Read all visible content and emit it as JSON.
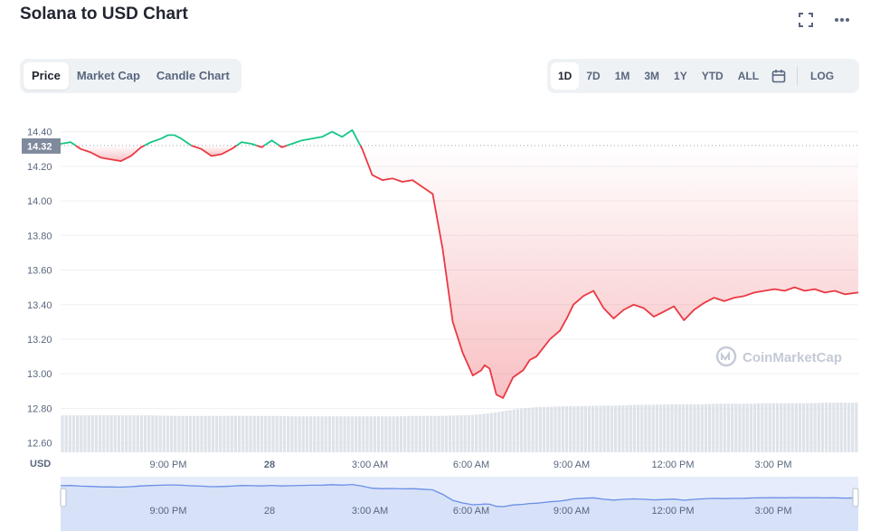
{
  "header": {
    "title": "Solana to USD Chart",
    "fullscreen_icon": "fullscreen-icon",
    "more_icon": "more-options-icon"
  },
  "tabs_left": [
    "Price",
    "Market Cap",
    "Candle Chart"
  ],
  "tabs_left_active": "Price",
  "tabs_right": [
    "1D",
    "7D",
    "1M",
    "3M",
    "1Y",
    "YTD",
    "ALL"
  ],
  "tabs_right_active": "1D",
  "calendar_icon": "calendar-icon",
  "log_label": "LOG",
  "watermark": "CoinMarketCap",
  "colors": {
    "up": "#16c784",
    "down": "#ea3943",
    "current_badge": "#808a9d",
    "volume": "#dfe3ea",
    "navigator_fill": "#e6ecfb",
    "navigator_line": "#6a8fe6"
  },
  "chart_data": {
    "type": "line",
    "currency_label": "USD",
    "current_price": "14.32",
    "reference_price": 14.32,
    "y_ticks": [
      "14.40",
      "14.20",
      "14.00",
      "13.80",
      "13.60",
      "13.40",
      "13.20",
      "13.00",
      "12.80",
      "12.60"
    ],
    "ylim": [
      12.6,
      14.4
    ],
    "x_ticks": [
      "9:00 PM",
      "28",
      "3:00 AM",
      "6:00 AM",
      "9:00 AM",
      "12:00 PM",
      "3:00 PM"
    ],
    "x_ticks_bold": "28",
    "xlim": [
      17.0,
      40.8
    ],
    "series": [
      {
        "x": [
          17.0,
          17.3,
          17.6,
          17.9,
          18.2,
          18.5,
          18.8,
          19.1,
          19.4,
          19.7,
          20.0,
          20.2,
          20.4,
          20.6,
          20.9,
          21.2,
          21.5,
          21.8,
          22.1,
          22.4,
          22.7,
          23.0,
          23.3,
          23.6,
          23.9,
          24.2,
          24.5,
          24.8,
          25.1,
          25.4,
          25.7,
          26.0,
          26.3,
          26.6,
          26.9,
          27.2,
          27.5,
          27.8,
          28.1,
          28.4,
          28.7,
          29.0,
          29.3,
          29.55,
          29.65,
          29.8,
          30.0,
          30.2,
          30.5,
          30.8,
          31.0,
          31.2,
          31.4,
          31.6,
          31.9,
          32.1,
          32.3,
          32.6,
          32.9,
          33.2,
          33.5,
          33.8,
          34.1,
          34.4,
          34.7,
          35.0,
          35.3,
          35.6,
          35.9,
          36.2,
          36.5,
          36.8,
          37.1,
          37.4,
          37.7,
          38.0,
          38.3,
          38.6,
          38.9,
          39.2,
          39.5,
          39.8,
          40.1,
          40.4,
          40.8
        ],
        "y": [
          14.33,
          14.34,
          14.3,
          14.28,
          14.25,
          14.24,
          14.23,
          14.26,
          14.31,
          14.34,
          14.36,
          14.38,
          14.38,
          14.36,
          14.32,
          14.3,
          14.26,
          14.27,
          14.3,
          14.34,
          14.33,
          14.31,
          14.35,
          14.31,
          14.33,
          14.35,
          14.36,
          14.37,
          14.4,
          14.37,
          14.41,
          14.3,
          14.15,
          14.12,
          14.13,
          14.11,
          14.12,
          14.08,
          14.04,
          13.72,
          13.3,
          13.12,
          12.99,
          13.02,
          13.05,
          13.03,
          12.88,
          12.86,
          12.98,
          13.02,
          13.08,
          13.1,
          13.15,
          13.2,
          13.25,
          13.32,
          13.4,
          13.45,
          13.48,
          13.38,
          13.32,
          13.37,
          13.4,
          13.38,
          13.33,
          13.36,
          13.39,
          13.31,
          13.37,
          13.41,
          13.44,
          13.42,
          13.44,
          13.45,
          13.47,
          13.48,
          13.49,
          13.48,
          13.5,
          13.48,
          13.49,
          13.47,
          13.48,
          13.46,
          13.47
        ]
      }
    ],
    "volume": [
      0.73,
      0.73,
      0.73,
      0.73,
      0.73,
      0.73,
      0.73,
      0.72,
      0.72,
      0.72,
      0.72,
      0.72,
      0.72,
      0.72,
      0.72,
      0.71,
      0.71,
      0.71,
      0.71,
      0.71,
      0.71,
      0.71,
      0.71,
      0.72,
      0.72,
      0.72,
      0.73,
      0.74,
      0.77,
      0.82,
      0.86,
      0.89,
      0.9,
      0.91,
      0.91,
      0.92,
      0.92,
      0.93,
      0.94,
      0.94,
      0.95,
      0.95,
      0.95,
      0.96,
      0.96,
      0.96,
      0.97,
      0.97,
      0.97,
      0.97,
      0.98,
      0.98,
      0.98
    ],
    "navigator_labels": [
      "9:00 PM",
      "28",
      "3:00 AM",
      "6:00 AM",
      "9:00 AM",
      "12:00 PM",
      "3:00 PM"
    ]
  }
}
